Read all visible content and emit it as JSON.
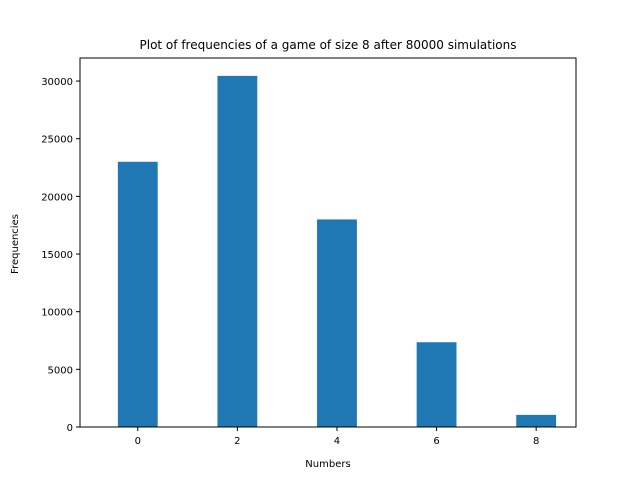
{
  "chart_data": {
    "type": "bar",
    "title": "Plot of frequencies of a game of size 8 after 80000 simulations",
    "xlabel": "Numbers",
    "ylabel": "Frequencies",
    "x": [
      0,
      2,
      4,
      6,
      8
    ],
    "values": [
      23000,
      30450,
      18000,
      7350,
      1050
    ],
    "xticks": [
      "0",
      "2",
      "4",
      "6",
      "8"
    ],
    "yticks": [
      "0",
      "5000",
      "10000",
      "15000",
      "20000",
      "25000",
      "30000"
    ],
    "xlim": [
      -1.16,
      8.8
    ],
    "ylim": [
      0,
      32000
    ],
    "grid": false,
    "legend": "none",
    "bar_color": "#1f77b4"
  }
}
